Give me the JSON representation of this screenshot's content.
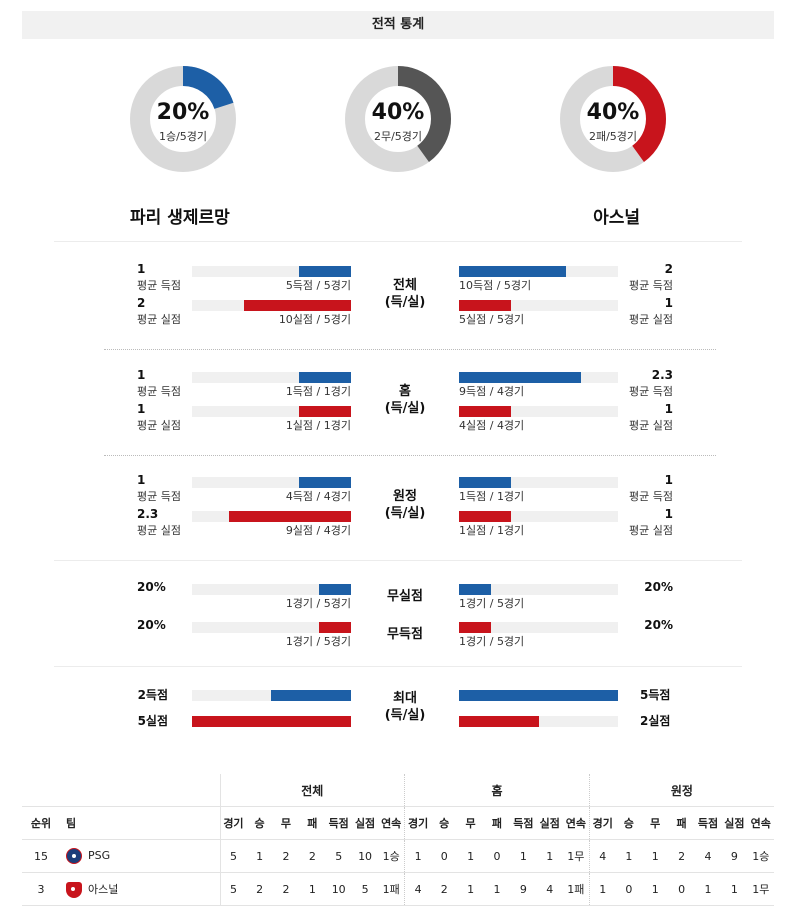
{
  "header": {
    "title": "전적 통계"
  },
  "chart_data": [
    {
      "type": "pie",
      "series": [
        {
          "label": "20%",
          "sub": "1승/5경기",
          "value": 20,
          "color": "#1d5fa6"
        },
        {
          "label": "40%",
          "sub": "2무/5경기",
          "value": 40,
          "color": "#555555"
        },
        {
          "label": "40%",
          "sub": "2패/5경기",
          "value": 40,
          "color": "#c8141c"
        }
      ],
      "track_color": "#d9d9d9"
    },
    {
      "type": "bar",
      "teams": {
        "left": "파리 생제르망",
        "right": "아스널"
      },
      "sections": [
        {
          "label": "전체\n(득/실)",
          "rows": [
            {
              "left": {
                "value": "1",
                "label": "평균 득점",
                "caption": "5득점 / 5경기",
                "fraction": 0.33,
                "color": "blue"
              },
              "right": {
                "value": "2",
                "label": "평균 득점",
                "caption": "10득점 / 5경기",
                "fraction": 0.67,
                "color": "blue"
              }
            },
            {
              "left": {
                "value": "2",
                "label": "평균 실점",
                "caption": "10실점 / 5경기",
                "fraction": 0.67,
                "color": "red"
              },
              "right": {
                "value": "1",
                "label": "평균 실점",
                "caption": "5실점 / 5경기",
                "fraction": 0.33,
                "color": "red"
              }
            }
          ]
        },
        {
          "label": "홈\n(득/실)",
          "rows": [
            {
              "left": {
                "value": "1",
                "label": "평균 득점",
                "caption": "1득점 / 1경기",
                "fraction": 0.33,
                "color": "blue"
              },
              "right": {
                "value": "2.3",
                "label": "평균 득점",
                "caption": "9득점 / 4경기",
                "fraction": 0.77,
                "color": "blue"
              }
            },
            {
              "left": {
                "value": "1",
                "label": "평균 실점",
                "caption": "1실점 / 1경기",
                "fraction": 0.33,
                "color": "red"
              },
              "right": {
                "value": "1",
                "label": "평균 실점",
                "caption": "4실점 / 4경기",
                "fraction": 0.33,
                "color": "red"
              }
            }
          ]
        },
        {
          "label": "원정\n(득/실)",
          "rows": [
            {
              "left": {
                "value": "1",
                "label": "평균 득점",
                "caption": "4득점 / 4경기",
                "fraction": 0.33,
                "color": "blue"
              },
              "right": {
                "value": "1",
                "label": "평균 득점",
                "caption": "1득점 / 1경기",
                "fraction": 0.33,
                "color": "blue"
              }
            },
            {
              "left": {
                "value": "2.3",
                "label": "평균 실점",
                "caption": "9실점 / 4경기",
                "fraction": 0.77,
                "color": "red"
              },
              "right": {
                "value": "1",
                "label": "평균 실점",
                "caption": "1실점 / 1경기",
                "fraction": 0.33,
                "color": "red"
              }
            }
          ]
        }
      ],
      "extra": [
        {
          "label": "무실점",
          "left": {
            "value": "20%",
            "caption": "1경기 / 5경기",
            "fraction": 0.2,
            "color": "blue"
          },
          "right": {
            "value": "20%",
            "caption": "1경기 / 5경기",
            "fraction": 0.2,
            "color": "blue"
          }
        },
        {
          "label": "무득점",
          "left": {
            "value": "20%",
            "caption": "1경기 / 5경기",
            "fraction": 0.2,
            "color": "red"
          },
          "right": {
            "value": "20%",
            "caption": "1경기 / 5경기",
            "fraction": 0.2,
            "color": "red"
          }
        }
      ],
      "max": {
        "label": "최대\n(득/실)",
        "rows": [
          {
            "left": {
              "value": "2득점",
              "fraction": 0.5,
              "color": "blue"
            },
            "right": {
              "value": "5득점",
              "fraction": 1.0,
              "color": "blue"
            }
          },
          {
            "left": {
              "value": "5실점",
              "fraction": 1.0,
              "color": "red"
            },
            "right": {
              "value": "2실점",
              "fraction": 0.5,
              "color": "red"
            }
          }
        ]
      }
    },
    {
      "type": "table",
      "groups": [
        "전체",
        "홈",
        "원정"
      ],
      "columns": [
        "순위",
        "팀",
        "경기",
        "승",
        "무",
        "패",
        "득점",
        "실점",
        "연속",
        "경기",
        "승",
        "무",
        "패",
        "득점",
        "실점",
        "연속",
        "경기",
        "승",
        "무",
        "패",
        "득점",
        "실점",
        "연속"
      ],
      "rows": [
        {
          "rank": "15",
          "team": "PSG",
          "crest": "psg-crest-icon",
          "cells": [
            "5",
            "1",
            "2",
            "2",
            "5",
            "10",
            "1승",
            "1",
            "0",
            "1",
            "0",
            "1",
            "1",
            "1무",
            "4",
            "1",
            "1",
            "2",
            "4",
            "9",
            "1승"
          ]
        },
        {
          "rank": "3",
          "team": "아스널",
          "crest": "arsenal-crest-icon",
          "cells": [
            "5",
            "2",
            "2",
            "1",
            "10",
            "5",
            "1패",
            "4",
            "2",
            "1",
            "1",
            "9",
            "4",
            "1패",
            "1",
            "0",
            "1",
            "0",
            "1",
            "1",
            "1무"
          ]
        }
      ]
    }
  ]
}
